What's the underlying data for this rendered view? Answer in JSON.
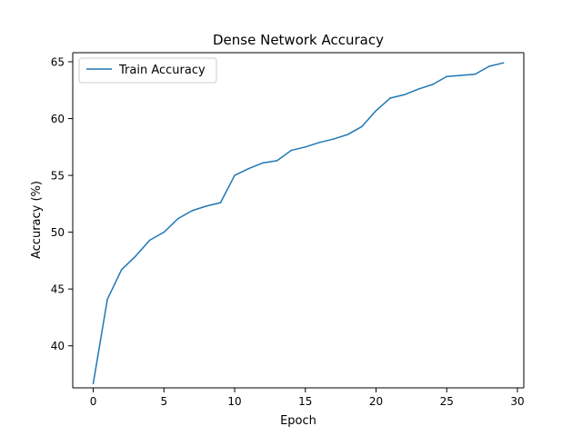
{
  "chart_data": {
    "type": "line",
    "title": "Dense Network Accuracy",
    "xlabel": "Epoch",
    "ylabel": "Accuracy (%)",
    "xlim": [
      -1.45,
      30.45
    ],
    "ylim": [
      36.3,
      65.8
    ],
    "xticks": [
      0,
      5,
      10,
      15,
      20,
      25,
      30
    ],
    "yticks": [
      40,
      45,
      50,
      55,
      60,
      65
    ],
    "grid": false,
    "legend_position": "top-left",
    "series": [
      {
        "name": "Train Accuracy",
        "color": "#1f77b4",
        "x": [
          0,
          1,
          2,
          3,
          4,
          5,
          6,
          7,
          8,
          9,
          10,
          11,
          12,
          13,
          14,
          15,
          16,
          17,
          18,
          19,
          20,
          21,
          22,
          23,
          24,
          25,
          26,
          27,
          28,
          29
        ],
        "y": [
          36.7,
          44.1,
          46.7,
          47.9,
          49.3,
          50.0,
          51.2,
          51.9,
          52.3,
          52.6,
          55.0,
          55.6,
          56.1,
          56.3,
          57.2,
          57.5,
          57.9,
          58.2,
          58.6,
          59.3,
          60.7,
          61.8,
          62.1,
          62.6,
          63.0,
          63.7,
          63.8,
          63.9,
          64.6,
          64.9
        ]
      }
    ]
  }
}
